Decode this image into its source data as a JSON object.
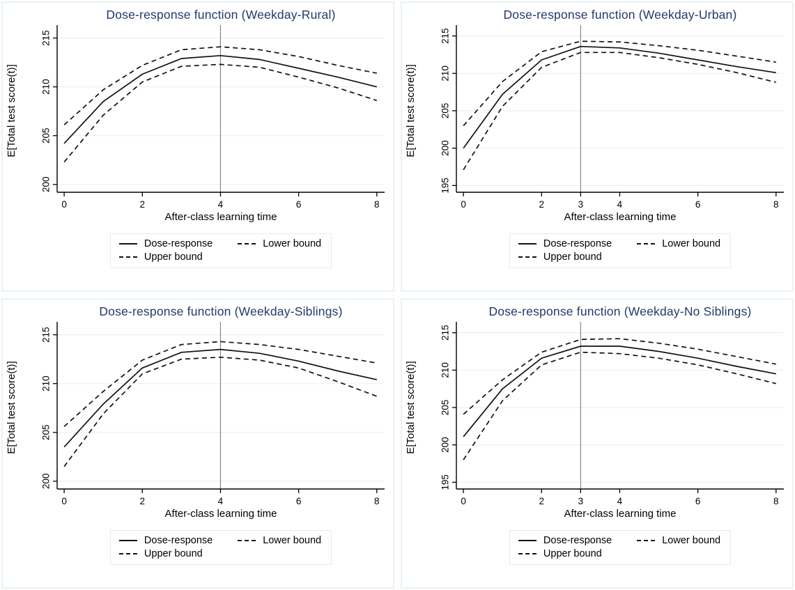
{
  "colors": {
    "title": "#24386b",
    "axis": "#000000",
    "series_line": "#111111",
    "gridline": "#e7f2f5",
    "refline": "#7f7f7f",
    "panel_border": "#e9f2f4",
    "legend_border": "#e2ecef",
    "background": "#ffffff"
  },
  "chart_data": [
    {
      "type": "line",
      "title": "Dose-response function (Weekday-Rural)",
      "xlabel": "After-class learning time",
      "ylabel": "E[Total test score(t)]",
      "x": [
        0,
        1,
        2,
        3,
        4,
        5,
        6,
        7,
        8
      ],
      "xticks": [
        0,
        2,
        4,
        6,
        8
      ],
      "yticks": [
        200,
        205,
        210,
        215
      ],
      "ylim": [
        199.2,
        215.9
      ],
      "xlim": [
        -0.18,
        8.2
      ],
      "refline_x": 4,
      "grid": true,
      "legend_position": "below",
      "series": [
        {
          "name": "Dose-response",
          "style": "solid",
          "values": [
            204.2,
            208.5,
            211.3,
            212.9,
            213.2,
            212.8,
            211.9,
            211.0,
            210.0
          ]
        },
        {
          "name": "Lower bound",
          "style": "dashed",
          "values": [
            202.3,
            207.1,
            210.5,
            212.1,
            212.3,
            212.0,
            211.0,
            209.9,
            208.6
          ]
        },
        {
          "name": "Upper bound",
          "style": "dashed",
          "values": [
            206.1,
            209.7,
            212.2,
            213.8,
            214.1,
            213.8,
            213.1,
            212.2,
            211.4
          ]
        }
      ]
    },
    {
      "type": "line",
      "title": "Dose-response function (Weekday-Urban)",
      "xlabel": "After-class learning time",
      "ylabel": "E[Total test score(t)]",
      "x": [
        0,
        1,
        2,
        3,
        4,
        5,
        6,
        7,
        8
      ],
      "xticks": [
        0,
        2,
        3,
        4,
        6,
        8
      ],
      "yticks": [
        195,
        200,
        205,
        210,
        215
      ],
      "ylim": [
        194.1,
        215.9
      ],
      "xlim": [
        -0.18,
        8.2
      ],
      "refline_x": 3,
      "grid": true,
      "legend_position": "below",
      "series": [
        {
          "name": "Dose-response",
          "style": "solid",
          "values": [
            200.0,
            207.2,
            211.8,
            213.6,
            213.4,
            212.7,
            211.8,
            210.9,
            210.1
          ]
        },
        {
          "name": "Lower bound",
          "style": "dashed",
          "values": [
            197.1,
            205.6,
            210.8,
            212.8,
            212.8,
            212.1,
            211.2,
            210.1,
            208.8
          ]
        },
        {
          "name": "Upper bound",
          "style": "dashed",
          "values": [
            203.0,
            208.9,
            212.9,
            214.3,
            214.2,
            213.7,
            213.1,
            212.3,
            211.5
          ]
        }
      ]
    },
    {
      "type": "line",
      "title": "Dose-response function (Weekday-Siblings)",
      "xlabel": "After-class learning time",
      "ylabel": "E[Total test score(t)]",
      "x": [
        0,
        1,
        2,
        3,
        4,
        5,
        6,
        7,
        8
      ],
      "xticks": [
        0,
        2,
        4,
        6,
        8
      ],
      "yticks": [
        200,
        205,
        210,
        215
      ],
      "ylim": [
        199.2,
        215.9
      ],
      "xlim": [
        -0.18,
        8.2
      ],
      "refline_x": 4,
      "grid": true,
      "legend_position": "below",
      "series": [
        {
          "name": "Dose-response",
          "style": "solid",
          "values": [
            203.5,
            207.9,
            211.6,
            213.2,
            213.5,
            213.1,
            212.3,
            211.3,
            210.4
          ]
        },
        {
          "name": "Lower bound",
          "style": "dashed",
          "values": [
            201.5,
            206.9,
            211.0,
            212.5,
            212.7,
            212.4,
            211.6,
            210.2,
            208.7
          ]
        },
        {
          "name": "Upper bound",
          "style": "dashed",
          "values": [
            205.6,
            209.2,
            212.4,
            214.0,
            214.3,
            214.0,
            213.5,
            212.8,
            212.1
          ]
        }
      ]
    },
    {
      "type": "line",
      "title": "Dose-response function (Weekday-No Siblings)",
      "xlabel": "After-class learning time",
      "ylabel": "E[Total test score(t)]",
      "x": [
        0,
        1,
        2,
        3,
        4,
        5,
        6,
        7,
        8
      ],
      "xticks": [
        0,
        2,
        3,
        4,
        6,
        8
      ],
      "yticks": [
        195,
        200,
        205,
        210,
        215
      ],
      "ylim": [
        194.1,
        215.9
      ],
      "xlim": [
        -0.18,
        8.2
      ],
      "refline_x": 3,
      "grid": true,
      "legend_position": "below",
      "series": [
        {
          "name": "Dose-response",
          "style": "solid",
          "values": [
            201.1,
            207.5,
            211.6,
            213.2,
            213.2,
            212.5,
            211.6,
            210.5,
            209.5
          ]
        },
        {
          "name": "Lower bound",
          "style": "dashed",
          "values": [
            198.0,
            205.9,
            210.7,
            212.4,
            212.2,
            211.6,
            210.7,
            209.5,
            208.2
          ]
        },
        {
          "name": "Upper bound",
          "style": "dashed",
          "values": [
            204.1,
            208.7,
            212.4,
            214.1,
            214.2,
            213.6,
            212.8,
            211.8,
            210.8
          ]
        }
      ]
    }
  ]
}
